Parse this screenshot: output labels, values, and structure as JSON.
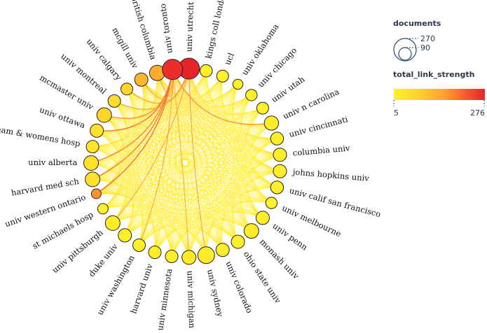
{
  "legend": {
    "size_title": "documents",
    "size_values": [
      "270",
      "90"
    ],
    "color_title": "total_link_strength",
    "color_min": "5",
    "color_max": "276",
    "gradient_colors": [
      "#fff12a",
      "#ffd52b",
      "#ffa22f",
      "#f6562f",
      "#e8242b"
    ]
  },
  "nodes": [
    {
      "label": "univ utrecht",
      "angle": -88,
      "size": 1.0,
      "strength": 1.0
    },
    {
      "label": "kings coll london",
      "angle": -77.5,
      "size": 0.38,
      "strength": 0.0
    },
    {
      "label": "ucl",
      "angle": -67,
      "size": 0.35,
      "strength": 0.0
    },
    {
      "label": "univ oklahoma",
      "angle": -56.5,
      "size": 0.22,
      "strength": 0.0
    },
    {
      "label": "univ chicago",
      "angle": -46,
      "size": 0.32,
      "strength": 0.0
    },
    {
      "label": "univ utah",
      "angle": -35.5,
      "size": 0.35,
      "strength": 0.0
    },
    {
      "label": "univ n carolina",
      "angle": -25,
      "size": 0.52,
      "strength": 0.05
    },
    {
      "label": "univ cincinnati",
      "angle": -15,
      "size": 0.42,
      "strength": 0.03
    },
    {
      "label": "columbia univ",
      "angle": -5,
      "size": 0.45,
      "strength": 0.03
    },
    {
      "label": "johns hopkins univ",
      "angle": 5,
      "size": 0.45,
      "strength": 0.03
    },
    {
      "label": "univ calif san francisco",
      "angle": 15,
      "size": 0.42,
      "strength": 0.03
    },
    {
      "label": "univ melbourne",
      "angle": 25,
      "size": 0.32,
      "strength": 0.0
    },
    {
      "label": "univ penn",
      "angle": 35.5,
      "size": 0.45,
      "strength": 0.03
    },
    {
      "label": "monash univ",
      "angle": 46,
      "size": 0.55,
      "strength": 0.05
    },
    {
      "label": "ohio state univ",
      "angle": 56.5,
      "size": 0.45,
      "strength": 0.03
    },
    {
      "label": "univ colorado",
      "angle": 67,
      "size": 0.45,
      "strength": 0.03
    },
    {
      "label": "univ sydney",
      "angle": 77.5,
      "size": 0.7,
      "strength": 0.05
    },
    {
      "label": "univ michigan",
      "angle": 88,
      "size": 0.5,
      "strength": 0.05
    },
    {
      "label": "univ minnesota",
      "angle": 98.5,
      "size": 0.4,
      "strength": 0.03
    },
    {
      "label": "harvard univ",
      "angle": 109,
      "size": 0.4,
      "strength": 0.03
    },
    {
      "label": "univ washington",
      "angle": 119.5,
      "size": 0.4,
      "strength": 0.03
    },
    {
      "label": "duke univ",
      "angle": 130,
      "size": 0.45,
      "strength": 0.03
    },
    {
      "label": "univ pittsburgh",
      "angle": 140.5,
      "size": 0.55,
      "strength": 0.05
    },
    {
      "label": "st michaels hosp",
      "angle": 151,
      "size": 0.25,
      "strength": 0.02
    },
    {
      "label": "univ western ontario",
      "angle": 161,
      "size": 0.2,
      "strength": 0.55
    },
    {
      "label": "harvard med sch",
      "angle": 170,
      "size": 0.55,
      "strength": 0.15
    },
    {
      "label": "univ alberta",
      "angle": 180,
      "size": 0.55,
      "strength": 0.15
    },
    {
      "label": "brigham & womens hosp",
      "angle": 190,
      "size": 0.4,
      "strength": 0.12
    },
    {
      "label": "univ ottawa",
      "angle": 200,
      "size": 0.45,
      "strength": 0.15
    },
    {
      "label": "mcmaster univ",
      "angle": 210.5,
      "size": 0.55,
      "strength": 0.25
    },
    {
      "label": "univ montreal",
      "angle": 221,
      "size": 0.4,
      "strength": 0.2
    },
    {
      "label": "univ calgary",
      "angle": 231.5,
      "size": 0.35,
      "strength": 0.25
    },
    {
      "label": "mcgill univ",
      "angle": 242,
      "size": 0.45,
      "strength": 0.4
    },
    {
      "label": "univ british columbia",
      "angle": 252.5,
      "size": 0.6,
      "strength": 0.45
    },
    {
      "label": "univ toronto",
      "angle": 263,
      "size": 0.0,
      "strength": 0.0
    }
  ]
}
